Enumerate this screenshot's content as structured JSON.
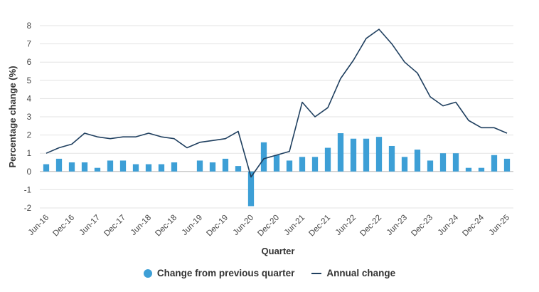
{
  "chart_data": {
    "type": "bar",
    "xlabel": "Quarter",
    "ylabel": "Percentage change (%)",
    "ylim": [
      -2,
      8
    ],
    "yticks": [
      "-2",
      "-1",
      "0",
      "1",
      "2",
      "3",
      "4",
      "5",
      "6",
      "7",
      "8"
    ],
    "grid": "horizontal",
    "legend_position": "bottom",
    "categories": [
      "Jun-16",
      "Sep-16",
      "Dec-16",
      "Mar-17",
      "Jun-17",
      "Sep-17",
      "Dec-17",
      "Mar-18",
      "Jun-18",
      "Sep-18",
      "Dec-18",
      "Mar-19",
      "Jun-19",
      "Sep-19",
      "Dec-19",
      "Mar-20",
      "Jun-20",
      "Sep-20",
      "Dec-20",
      "Mar-21",
      "Jun-21",
      "Sep-21",
      "Dec-21",
      "Mar-22",
      "Jun-22",
      "Sep-22",
      "Dec-22",
      "Mar-23",
      "Jun-23",
      "Sep-23",
      "Dec-23",
      "Mar-24",
      "Jun-24",
      "Sep-24",
      "Dec-24",
      "Mar-25",
      "Jun-25"
    ],
    "tick_labels": [
      "Jun-16",
      "Dec-16",
      "Jun-17",
      "Dec-17",
      "Jun-18",
      "Dec-18",
      "Jun-19",
      "Dec-19",
      "Jun-20",
      "Dec-20",
      "Jun-21",
      "Dec-21",
      "Jun-22",
      "Dec-22",
      "Jun-23",
      "Dec-23",
      "Jun-24",
      "Dec-24",
      "Jun-25"
    ],
    "series": [
      {
        "name": "Change from previous quarter",
        "type": "bar",
        "color": "#3d9fd6",
        "values": [
          0.4,
          0.7,
          0.5,
          0.5,
          0.2,
          0.6,
          0.6,
          0.4,
          0.4,
          0.4,
          0.5,
          0.0,
          0.6,
          0.5,
          0.7,
          0.3,
          -1.9,
          1.6,
          0.9,
          0.6,
          0.8,
          0.8,
          1.3,
          2.1,
          1.8,
          1.8,
          1.9,
          1.4,
          0.8,
          1.2,
          0.6,
          1.0,
          1.0,
          0.2,
          0.2,
          0.9,
          0.7
        ]
      },
      {
        "name": "Annual change",
        "type": "line",
        "color": "#1f3f5f",
        "values": [
          1.0,
          1.3,
          1.5,
          2.1,
          1.9,
          1.8,
          1.9,
          1.9,
          2.1,
          1.9,
          1.8,
          1.3,
          1.6,
          1.7,
          1.8,
          2.2,
          -0.3,
          0.7,
          0.9,
          1.1,
          3.8,
          3.0,
          3.5,
          5.1,
          6.1,
          7.3,
          7.8,
          7.0,
          6.0,
          5.4,
          4.1,
          3.6,
          3.8,
          2.8,
          2.4,
          2.4,
          2.1
        ]
      }
    ]
  }
}
